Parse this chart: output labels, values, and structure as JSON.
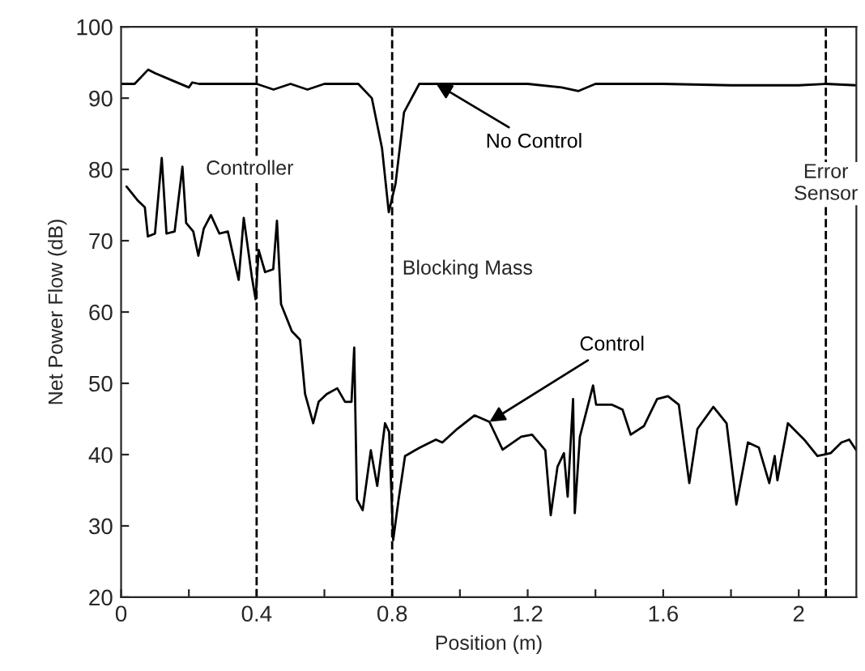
{
  "chart_data": {
    "type": "line",
    "xlabel": "Position (m)",
    "ylabel": "Net Power Flow (dB)",
    "xlim": [
      0,
      2.17
    ],
    "ylim": [
      20,
      100
    ],
    "xticks": [
      0,
      {
        "value": 0.2,
        "label": null
      },
      0.4,
      {
        "value": 0.6,
        "label": null
      },
      0.8,
      {
        "value": 1.0,
        "label": null
      },
      1.2,
      {
        "value": 1.4,
        "label": null
      },
      1.6,
      {
        "value": 1.8,
        "label": null
      },
      2
    ],
    "yticks": [
      20,
      30,
      40,
      50,
      60,
      70,
      80,
      90,
      100
    ],
    "grid": false,
    "marker": "none",
    "line_style": "solid",
    "series": [
      {
        "name": "No Control",
        "color": "#000000",
        "x": [
          0,
          0.04,
          0.08,
          0.1,
          0.15,
          0.2,
          0.21,
          0.23,
          0.3,
          0.4,
          0.45,
          0.5,
          0.55,
          0.6,
          0.7,
          0.74,
          0.77,
          0.79,
          0.81,
          0.835,
          0.88,
          0.93,
          1.0,
          1.2,
          1.3,
          1.35,
          1.4,
          1.6,
          1.8,
          2.0,
          2.08,
          2.17
        ],
        "values": [
          92,
          92,
          94,
          93.5,
          92.5,
          91.5,
          92.2,
          92,
          92,
          92,
          91.2,
          92,
          91.2,
          92,
          92,
          90,
          83,
          74,
          78,
          88,
          92,
          92,
          92,
          92,
          91.5,
          91,
          92,
          92,
          91.8,
          91.8,
          92,
          91.8
        ]
      },
      {
        "name": "Control",
        "color": "#000000",
        "x": [
          0.016,
          0.05,
          0.07,
          0.079,
          0.1,
          0.12,
          0.134,
          0.158,
          0.181,
          0.192,
          0.213,
          0.228,
          0.244,
          0.265,
          0.29,
          0.315,
          0.347,
          0.362,
          0.386,
          0.397,
          0.406,
          0.425,
          0.449,
          0.46,
          0.472,
          0.504,
          0.528,
          0.543,
          0.567,
          0.583,
          0.607,
          0.638,
          0.661,
          0.68,
          0.688,
          0.696,
          0.713,
          0.737,
          0.756,
          0.779,
          0.791,
          0.803,
          0.819,
          0.838,
          0.882,
          0.929,
          0.948,
          0.992,
          1.043,
          1.087,
          1.126,
          1.181,
          1.213,
          1.252,
          1.268,
          1.288,
          1.307,
          1.318,
          1.334,
          1.339,
          1.354,
          1.393,
          1.402,
          1.449,
          1.48,
          1.504,
          1.543,
          1.582,
          1.614,
          1.646,
          1.677,
          1.701,
          1.748,
          1.787,
          1.816,
          1.85,
          1.882,
          1.913,
          1.929,
          1.937,
          1.968,
          2.016,
          2.055,
          2.094,
          2.126,
          2.149,
          2.17
        ],
        "values": [
          77.6,
          75.6,
          74.7,
          70.6,
          71,
          81.6,
          71,
          71.3,
          80.4,
          72.5,
          71.3,
          67.9,
          71.7,
          73.6,
          71,
          71.3,
          64.5,
          73.2,
          64.9,
          61.8,
          68.7,
          65.6,
          66,
          72.8,
          61.1,
          57.3,
          56.1,
          48.5,
          44.4,
          47.4,
          48.5,
          49.3,
          47.4,
          47.4,
          55,
          33.7,
          32.2,
          40.6,
          35.6,
          44.4,
          43.2,
          28,
          33.7,
          39.8,
          41,
          42.1,
          41.7,
          43.6,
          45.5,
          44.6,
          40.7,
          42.5,
          42.8,
          40.6,
          31.5,
          38.3,
          40.2,
          34.1,
          47.8,
          31.8,
          42.5,
          49.7,
          47,
          47,
          46.3,
          42.8,
          44,
          47.8,
          48.2,
          47,
          36,
          43.6,
          46.7,
          44.4,
          33,
          41.7,
          41,
          36,
          39.8,
          36.4,
          44.4,
          42.1,
          39.8,
          40.2,
          41.7,
          42.1,
          40.6
        ]
      }
    ],
    "ref_lines": [
      {
        "axis": "x",
        "value": 0.4,
        "color": "#000000",
        "line_style": "dashed"
      },
      {
        "axis": "x",
        "value": 0.8,
        "color": "#000000",
        "line_style": "dashed"
      },
      {
        "axis": "x",
        "value": 2.08,
        "color": "#000000",
        "line_style": "dashed"
      }
    ],
    "annotations": [
      {
        "text": "Controller",
        "x": 0.4,
        "y": 80
      },
      {
        "text": "Blocking Mass",
        "x": 0.8,
        "y": 66
      },
      {
        "text": "Error\nSensor",
        "x": 2.08,
        "y": 78
      }
    ]
  }
}
